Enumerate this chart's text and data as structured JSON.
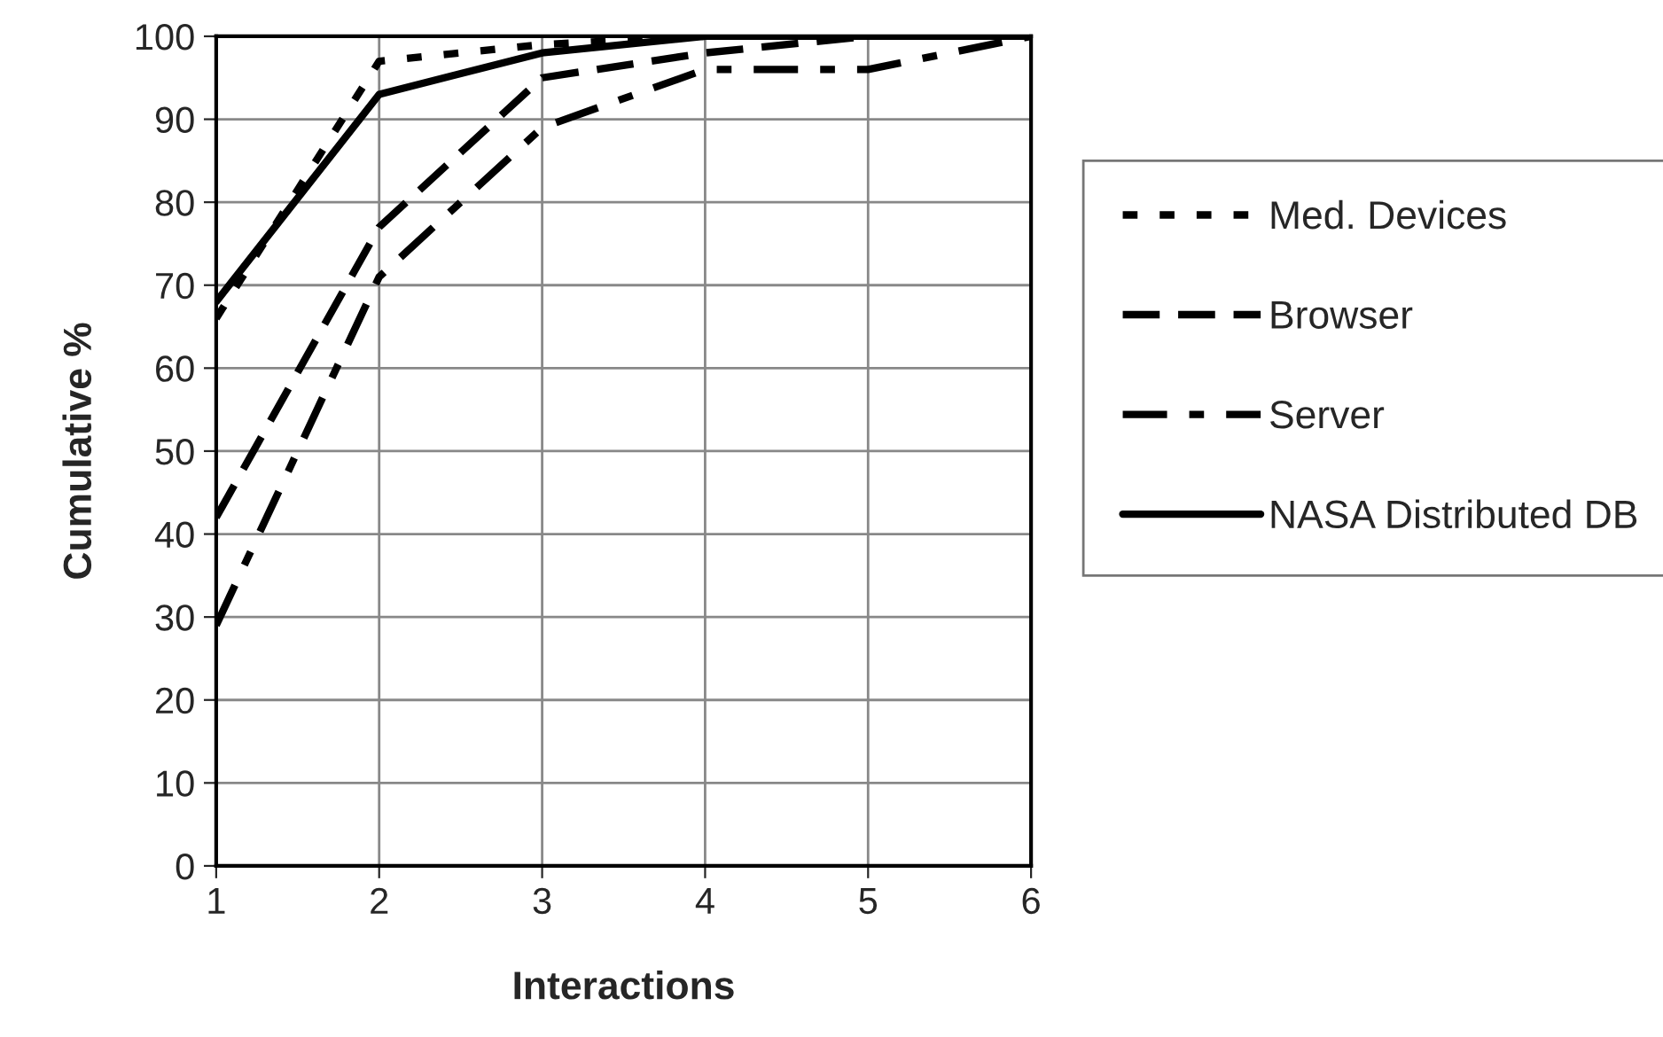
{
  "chart_data": {
    "type": "line",
    "xlabel": "Interactions",
    "ylabel": "Cumulative %",
    "x": [
      1,
      2,
      3,
      4,
      5,
      6
    ],
    "xlim": [
      1,
      6
    ],
    "xticks": [
      1,
      2,
      3,
      4,
      5,
      6
    ],
    "ylim": [
      0,
      100
    ],
    "yticks": [
      0,
      10,
      20,
      30,
      40,
      50,
      60,
      70,
      80,
      90,
      100
    ],
    "grid": true,
    "legend": "right",
    "marker": "none",
    "series": [
      {
        "name": "Med. Devices",
        "color": "#000000",
        "line_style": "dotted",
        "values": [
          66,
          97,
          99,
          100,
          100,
          100
        ]
      },
      {
        "name": "Browser",
        "color": "#000000",
        "line_style": "dashed",
        "values": [
          42,
          77,
          95,
          98,
          100,
          100
        ]
      },
      {
        "name": "Server",
        "color": "#000000",
        "line_style": "dashed",
        "values": [
          29,
          71,
          89,
          96,
          96,
          100
        ]
      },
      {
        "name": "NASA Distributed DB",
        "color": "#000000",
        "line_style": "solid",
        "values": [
          68,
          93,
          98,
          100,
          100,
          100
        ]
      }
    ]
  }
}
